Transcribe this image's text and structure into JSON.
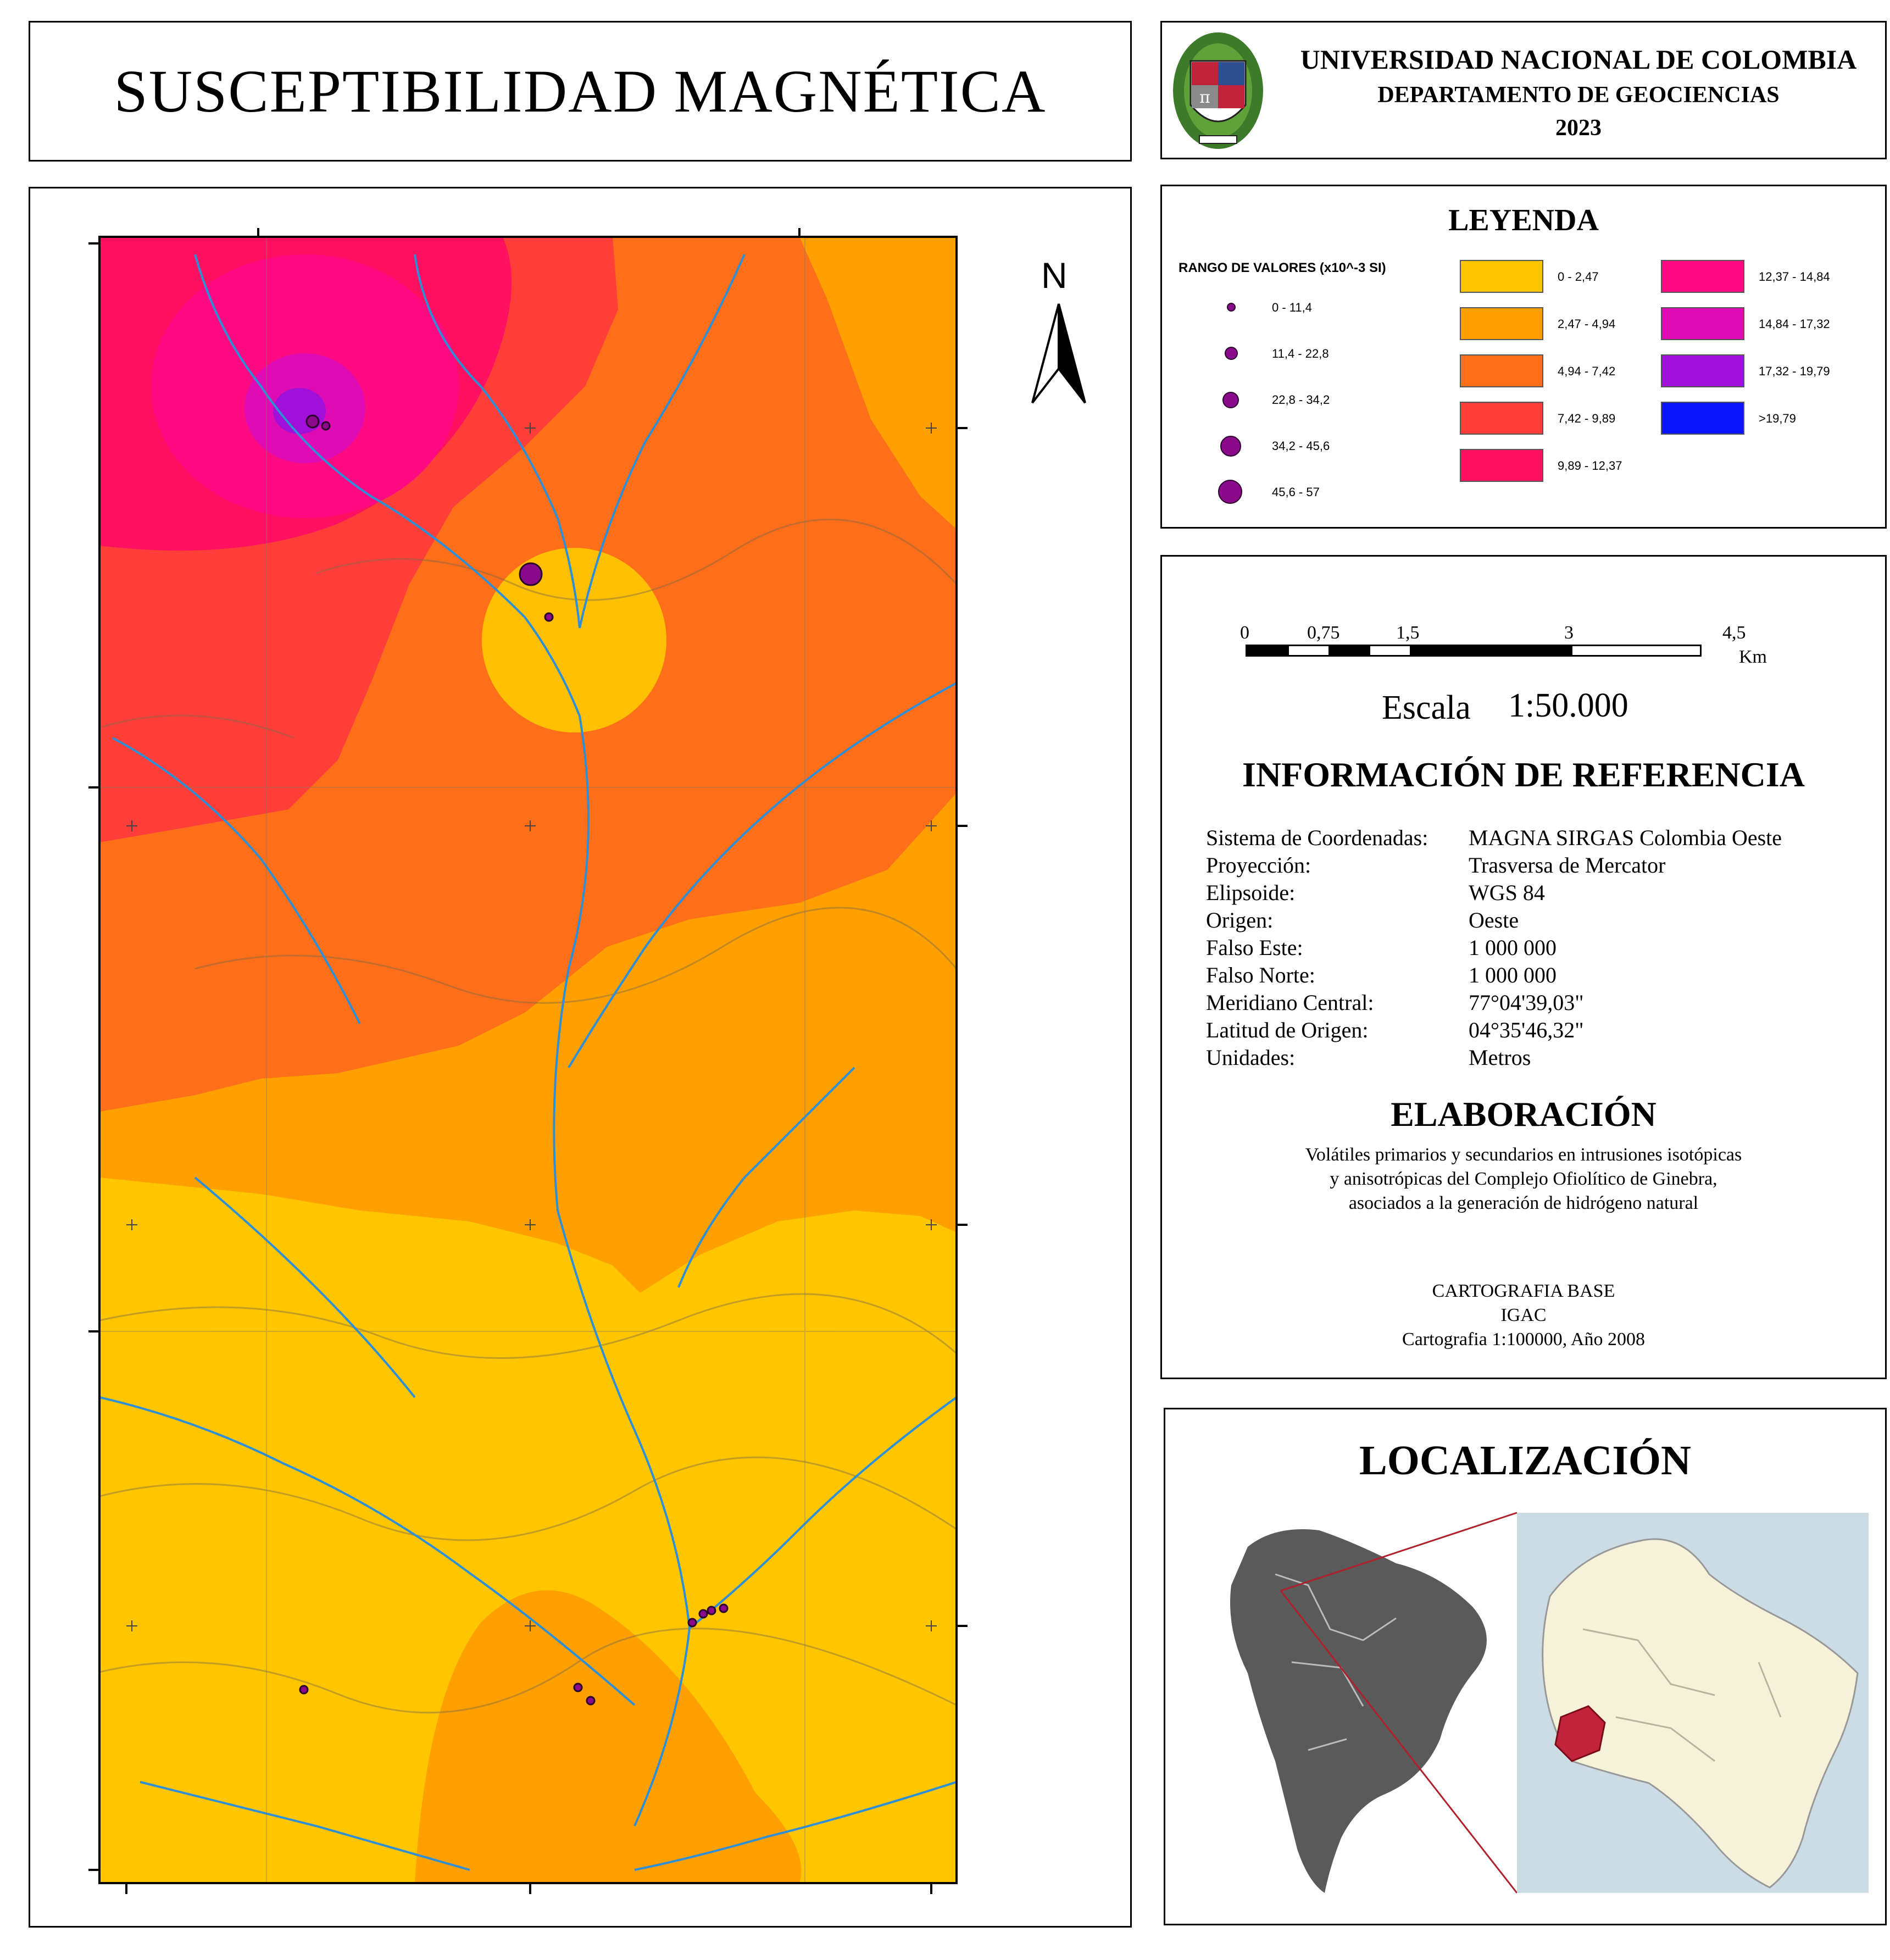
{
  "title": "SUSCEPTIBILIDAD MAGNÉTICA",
  "header": {
    "university": "UNIVERSIDAD NACIONAL DE COLOMBIA",
    "department": "DEPARTAMENTO DE GEOCIENCIAS",
    "year": "2023",
    "logo_icon": "university-crest-icon"
  },
  "map": {
    "north_label": "N",
    "colors": {
      "c0": "#ffc600",
      "c1": "#ff9f00",
      "c2": "#ff6e19",
      "c3": "#ff3e3a",
      "c4": "#ff1060",
      "c5": "#ff0a82",
      "c6": "#df0bb4",
      "c7": "#a010d8",
      "c8": "#0a14ff",
      "river": "#2e8fd6",
      "contour": "#7a6a4a",
      "sample": "#8b0a8b"
    }
  },
  "legend": {
    "title": "LEYENDA",
    "range_title": "RANGO DE VALORES (x10^-3 SI)",
    "point_ranges": [
      "0 - 11,4",
      "11,4 - 22,8",
      "22,8 - 34,2",
      "34,2 - 45,6",
      "45,6 - 57"
    ],
    "color_ranges": [
      {
        "label": "0 - 2,47",
        "color": "#ffc600"
      },
      {
        "label": "2,47 - 4,94",
        "color": "#ff9f00"
      },
      {
        "label": "4,94 - 7,42",
        "color": "#ff6e19"
      },
      {
        "label": "7,42 - 9,89",
        "color": "#ff3e3a"
      },
      {
        "label": "9,89 - 12,37",
        "color": "#ff1060"
      },
      {
        "label": "12,37 - 14,84",
        "color": "#ff0a82"
      },
      {
        "label": "14,84 - 17,32",
        "color": "#df0bb4"
      },
      {
        "label": "17,32 - 19,79",
        "color": "#a010d8"
      },
      {
        "label": ">19,79",
        "color": "#0a14ff"
      }
    ]
  },
  "scale": {
    "ticks": [
      "0",
      "0,75",
      "1,5",
      "3",
      "4,5"
    ],
    "unit": "Km",
    "label": "Escala",
    "value": "1:50.000"
  },
  "reference": {
    "title": "INFORMACIÓN DE REFERENCIA",
    "rows": [
      {
        "k": "Sistema de Coordenadas:",
        "v": "MAGNA SIRGAS Colombia Oeste"
      },
      {
        "k": "Proyección:",
        "v": "Trasversa de Mercator"
      },
      {
        "k": "Elipsoide:",
        "v": "WGS 84"
      },
      {
        "k": "Origen:",
        "v": "Oeste"
      },
      {
        "k": "Falso Este:",
        "v": "1 000 000"
      },
      {
        "k": "Falso Norte:",
        "v": "1 000 000"
      },
      {
        "k": "Meridiano Central:",
        "v": "77°04'39,03\""
      },
      {
        "k": "Latitud de Origen:",
        "v": "04°35'46,32\""
      },
      {
        "k": "Unidades:",
        "v": "Metros"
      }
    ]
  },
  "elaboration": {
    "title": "ELABORACIÓN",
    "lines": [
      "Volátiles primarios y secundarios en intrusiones isotópicas",
      "y anisotrópicas del Complejo Ofiolítico de Ginebra,",
      "asociados a la generación de hidrógeno natural"
    ],
    "source_lines": [
      "CARTOGRAFIA BASE",
      "IGAC",
      "Cartografia 1:100000, Año 2008"
    ]
  },
  "location": {
    "title": "LOCALIZACIÓN",
    "colors": {
      "continent": "#5a5a5a",
      "sea": "#b3dcf2",
      "land": "#f6f2da",
      "highlight": "#c0233a",
      "neighbor": "#dcdcdc"
    }
  }
}
